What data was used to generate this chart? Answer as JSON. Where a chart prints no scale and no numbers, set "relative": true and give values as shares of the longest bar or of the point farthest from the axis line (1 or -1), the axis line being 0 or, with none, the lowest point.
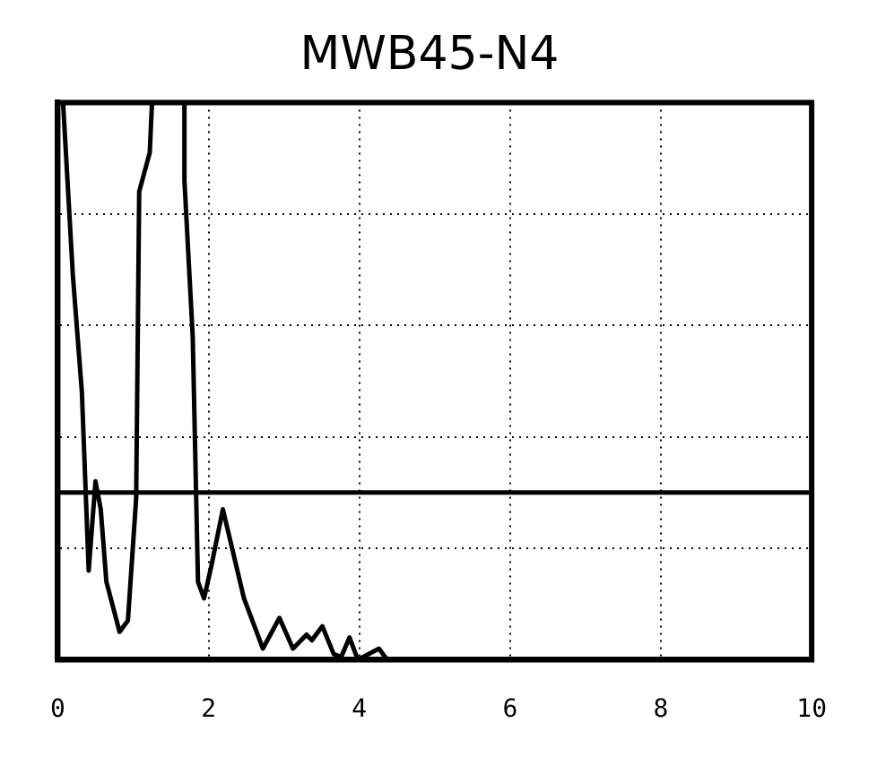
{
  "chart_data": {
    "type": "line",
    "title": "MWB45-N4",
    "relative": true,
    "xlim": [
      0,
      10
    ],
    "xticks": [
      0,
      2,
      4,
      6,
      8,
      10
    ],
    "grid": true,
    "legend": false,
    "marker": "none",
    "line_style": "solid",
    "series": [
      {
        "color": "#000000",
        "x": [
          0.07,
          0.2,
          0.32,
          0.41,
          0.5,
          0.57,
          0.645,
          0.82,
          0.93,
          1.04,
          1.08,
          1.22,
          1.25,
          1.68,
          1.68,
          1.79,
          1.86,
          1.94,
          2.04,
          2.19,
          2.26,
          2.47,
          2.72,
          2.94,
          3.12,
          3.3,
          3.37,
          3.51,
          3.66,
          3.76,
          3.87,
          3.98,
          4.26,
          4.37
        ],
        "values": [
          1,
          0.69,
          0.48,
          0.16,
          0.32,
          0.27,
          0.14,
          0.05,
          0.07,
          0.29,
          0.84,
          0.91,
          1,
          1,
          0.86,
          0.58,
          0.14,
          0.11,
          0.17,
          0.27,
          0.23,
          0.11,
          0.02,
          0.075,
          0.02,
          0.045,
          0.035,
          0.06,
          0.01,
          0.005,
          0.04,
          0,
          0.02,
          0
        ]
      }
    ],
    "ref_lines": [
      {
        "axis": "y",
        "value": 0.3,
        "color": "#000000"
      }
    ]
  }
}
